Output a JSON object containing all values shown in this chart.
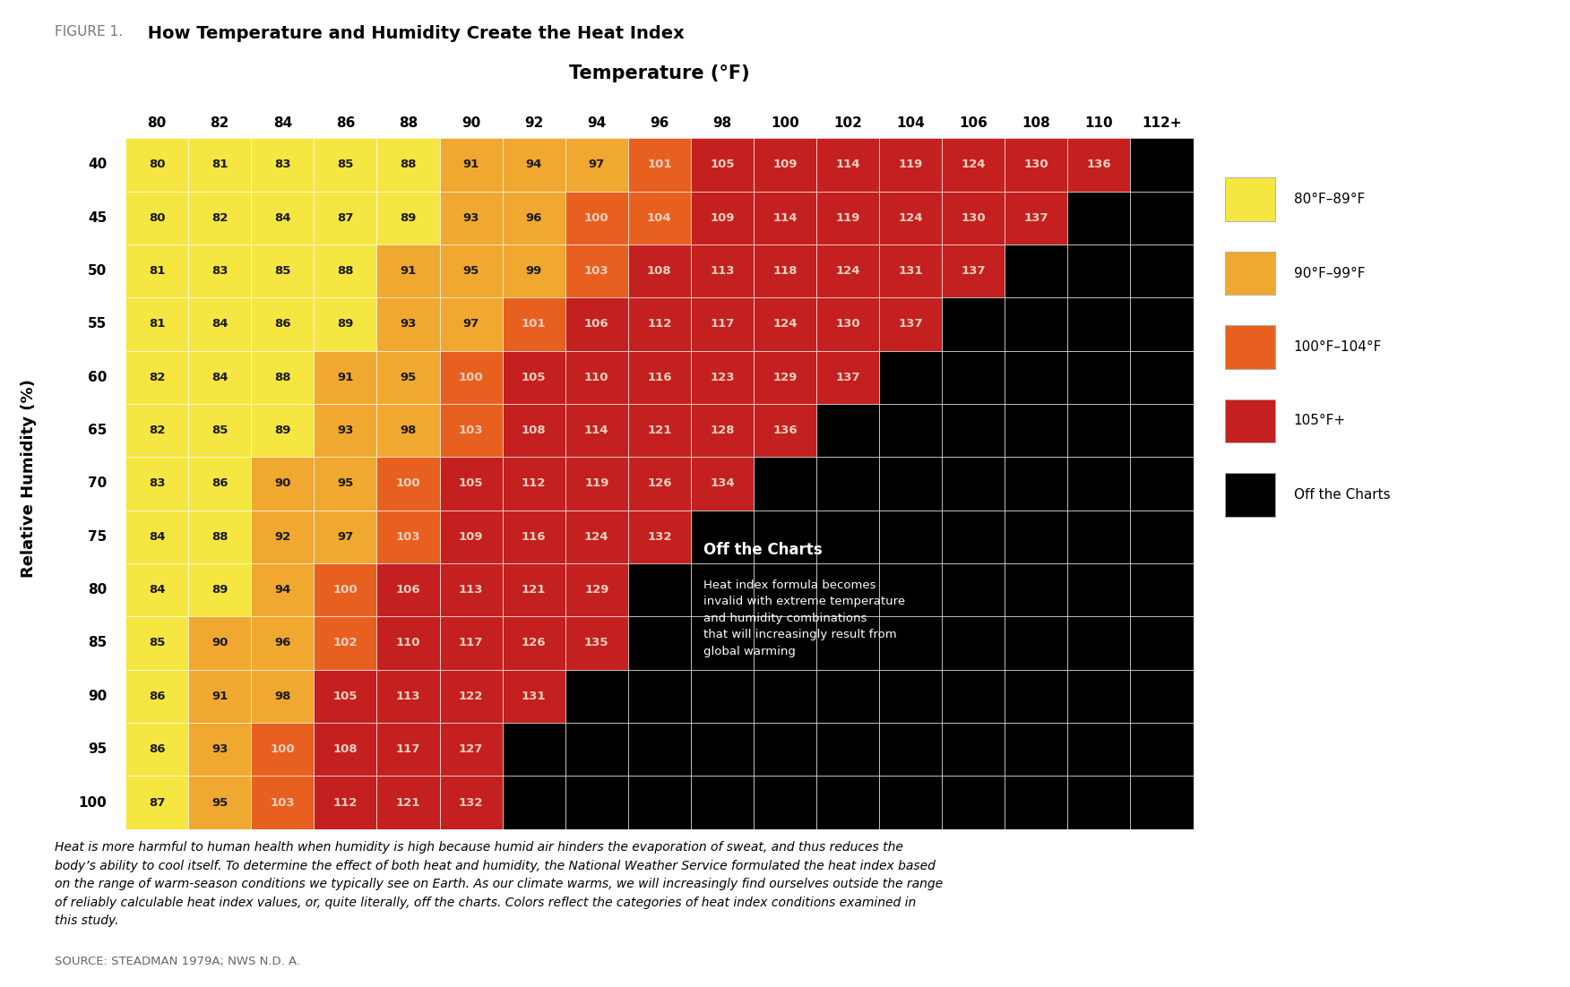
{
  "title_prefix": "FIGURE 1.",
  "title_main": " How Temperature and Humidity Create the Heat Index",
  "xlabel": "Temperature (°F)",
  "ylabel": "Relative Humidity (%)",
  "temp_labels": [
    "80",
    "82",
    "84",
    "86",
    "88",
    "90",
    "92",
    "94",
    "96",
    "98",
    "100",
    "102",
    "104",
    "106",
    "108",
    "110",
    "112+"
  ],
  "humidity_labels": [
    "40",
    "45",
    "50",
    "55",
    "60",
    "65",
    "70",
    "75",
    "80",
    "85",
    "90",
    "95",
    "100"
  ],
  "heat_index_table": [
    [
      80,
      81,
      83,
      85,
      88,
      91,
      94,
      97,
      101,
      105,
      109,
      114,
      119,
      124,
      130,
      136,
      null
    ],
    [
      80,
      82,
      84,
      87,
      89,
      93,
      96,
      100,
      104,
      109,
      114,
      119,
      124,
      130,
      137,
      null,
      null
    ],
    [
      81,
      83,
      85,
      88,
      91,
      95,
      99,
      103,
      108,
      113,
      118,
      124,
      131,
      137,
      null,
      null,
      null
    ],
    [
      81,
      84,
      86,
      89,
      93,
      97,
      101,
      106,
      112,
      117,
      124,
      130,
      137,
      null,
      null,
      null,
      null
    ],
    [
      82,
      84,
      88,
      91,
      95,
      100,
      105,
      110,
      116,
      123,
      129,
      137,
      null,
      null,
      null,
      null,
      null
    ],
    [
      82,
      85,
      89,
      93,
      98,
      103,
      108,
      114,
      121,
      128,
      136,
      null,
      null,
      null,
      null,
      null,
      null
    ],
    [
      83,
      86,
      90,
      95,
      100,
      105,
      112,
      119,
      126,
      134,
      null,
      null,
      null,
      null,
      null,
      null,
      null
    ],
    [
      84,
      88,
      92,
      97,
      103,
      109,
      116,
      124,
      132,
      null,
      null,
      null,
      null,
      null,
      null,
      null,
      null
    ],
    [
      84,
      89,
      94,
      100,
      106,
      113,
      121,
      129,
      null,
      null,
      null,
      null,
      null,
      null,
      null,
      null,
      null
    ],
    [
      85,
      90,
      96,
      102,
      110,
      117,
      126,
      135,
      null,
      null,
      null,
      null,
      null,
      null,
      null,
      null,
      null
    ],
    [
      86,
      91,
      98,
      105,
      113,
      122,
      131,
      null,
      null,
      null,
      null,
      null,
      null,
      null,
      null,
      null,
      null
    ],
    [
      86,
      93,
      100,
      108,
      117,
      127,
      null,
      null,
      null,
      null,
      null,
      null,
      null,
      null,
      null,
      null,
      null
    ],
    [
      87,
      95,
      103,
      112,
      121,
      132,
      null,
      null,
      null,
      null,
      null,
      null,
      null,
      null,
      null,
      null,
      null
    ]
  ],
  "color_yellow": "#F5E642",
  "color_orange": "#F0A830",
  "color_darkorange": "#E86020",
  "color_red": "#C42020",
  "color_black": "#000000",
  "color_background": "#FFFFFF",
  "color_topline": "#7AB648",
  "legend_labels": [
    "80°F–89°F",
    "90°F–99°F",
    "100°F–104°F",
    "105°F+",
    "Off the Charts"
  ],
  "legend_colors": [
    "#F5E642",
    "#F0A830",
    "#E86020",
    "#C42020",
    "#000000"
  ],
  "annotation_title": "Off the Charts",
  "annotation_body": "Heat index formula becomes\ninvalid with extreme temperature\nand humidity combinations\nthat will increasingly result from\nglobal warming",
  "footer_text": "Heat is more harmful to human health when humidity is high because humid air hinders the evaporation of sweat, and thus reduces the\nbody’s ability to cool itself. To determine the effect of both heat and humidity, the National Weather Service formulated the heat index based\non the range of warm-season conditions we typically see on Earth. As our climate warms, we will increasingly find ourselves outside the range\nof reliably calculable heat index values, or, quite literally, off the charts. Colors reflect the categories of heat index conditions examined in\nthis study.",
  "source_text": "SOURCE: STEADMAN 1979A; NWS N.D. A."
}
